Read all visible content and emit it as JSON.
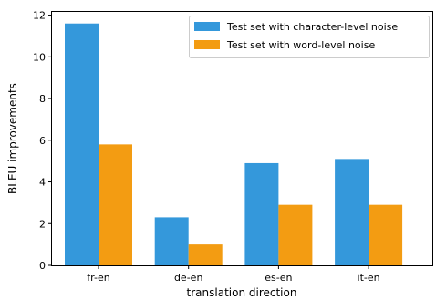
{
  "chart_data": {
    "type": "bar",
    "title": "",
    "xlabel": "translation direction",
    "ylabel": "BLEU improvements",
    "categories": [
      "fr-en",
      "de-en",
      "es-en",
      "it-en"
    ],
    "series": [
      {
        "name": "Test set with character-level noise",
        "values": [
          11.6,
          2.3,
          4.9,
          5.1
        ],
        "color": "#3498db"
      },
      {
        "name": "Test set with word-level noise",
        "values": [
          5.8,
          1.0,
          2.9,
          2.9
        ],
        "color": "#f39c12"
      }
    ],
    "ylim": [
      0,
      12.2
    ],
    "yticks": [
      0,
      2,
      4,
      6,
      8,
      10,
      12
    ],
    "grid": false,
    "legend_position": "top-right"
  }
}
